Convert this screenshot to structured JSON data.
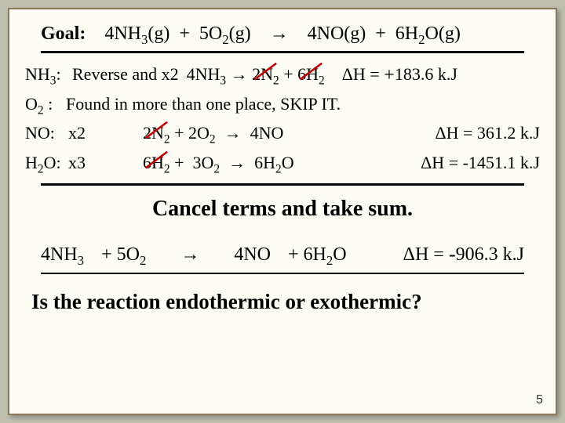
{
  "goal": {
    "label": "Goal:",
    "equation_html": "4NH<span class='sub'>3</span>(g)&nbsp;&nbsp;+&nbsp;&nbsp;5O<span class='sub'>2</span>(g)&nbsp;&nbsp;&nbsp;&nbsp;&rarr;&nbsp;&nbsp;&nbsp;&nbsp;4NO(g)&nbsp;&nbsp;+&nbsp;&nbsp;6H<span class='sub'>2</span>O(g)"
  },
  "rows": {
    "nh3": {
      "label_html": "NH<span class='sub'>3</span>:",
      "note": "Reverse and x2",
      "eq_html": "4NH<span class='sub'>3</span> &rarr; <span class='strike-container'>2N<span class='sub'>2</span><svg class='red-slash' viewBox='0 0 40 28' preserveAspectRatio='none'><line x1='4' y1='26' x2='36' y2='2' stroke='#c00000' stroke-width='3'/></svg></span> + <span class='strike-container'>6H<span class='sub'>2</span><svg class='red-slash' viewBox='0 0 40 28' preserveAspectRatio='none'><line x1='4' y1='26' x2='36' y2='2' stroke='#c00000' stroke-width='3'/></svg></span>",
      "dh_html": "&Delta;H = <span class='big-plus'>+</span>183.6 k.J"
    },
    "o2": {
      "label_html": "O<span class='sub'>2</span> :",
      "note": "Found in more than one place, SKIP IT."
    },
    "no": {
      "label_html": "NO:",
      "note": "x2",
      "eq_html": "<span class='strike-container'>2N<span class='sub'>2</span><svg class='red-slash' viewBox='0 0 40 28' preserveAspectRatio='none'><line x1='4' y1='26' x2='36' y2='2' stroke='#c00000' stroke-width='3'/></svg></span> + 2O<span class='sub'>2</span>&nbsp;&nbsp;&rarr;&nbsp;&nbsp;4NO",
      "dh_html": "&Delta;H = 361.2 k.J"
    },
    "h2o": {
      "label_html": "H<span class='sub'>2</span>O:",
      "note": "x3",
      "eq_html": "<span class='strike-container'>6H<span class='sub'>2</span><svg class='red-slash' viewBox='0 0 40 28' preserveAspectRatio='none'><line x1='4' y1='26' x2='36' y2='2' stroke='#c00000' stroke-width='3'/></svg></span> +&nbsp;&nbsp;3O<span class='sub'>2</span>&nbsp;&nbsp;&rarr;&nbsp;&nbsp;6H<span class='sub'>2</span>O",
      "dh_html": "&Delta;H = -1451.1 k.J"
    }
  },
  "cancel_text": "Cancel terms and take sum.",
  "sum": {
    "t1_html": "4NH<span class='sub'>3</span>",
    "t2_html": "+ 5O<span class='sub'>2</span>",
    "arrow": "→",
    "t3_html": "4NO",
    "t4_html": "+ 6H<span class='sub'>2</span>O",
    "dh_html": "&Delta;H = <span class='dh-minus'>-</span>906.3 k.J"
  },
  "question": "Is the reaction endothermic or exothermic?",
  "page_number": "5",
  "colors": {
    "background": "#fdfdf5",
    "border": "#8a7a5a",
    "text": "#000000",
    "strike": "#c00000"
  }
}
